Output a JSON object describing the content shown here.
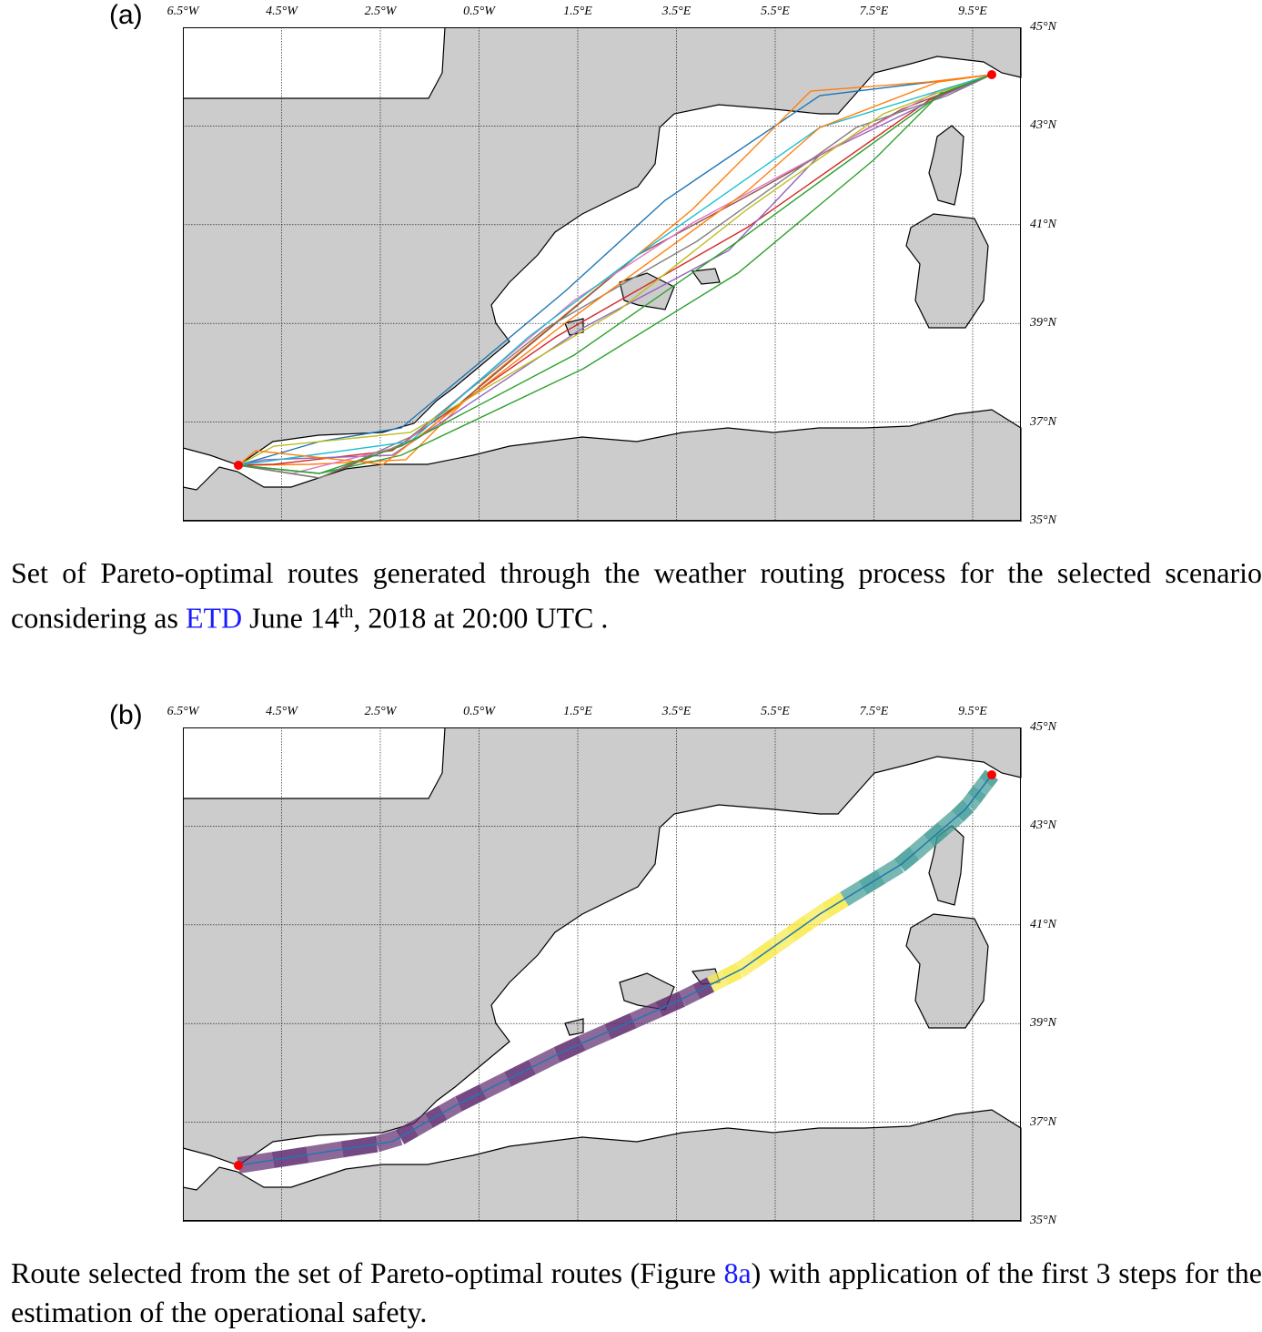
{
  "panels": [
    {
      "label": "(a)"
    },
    {
      "label": "(b)"
    }
  ],
  "lon_ticks": [
    "6.5°W",
    "4.5°W",
    "2.5°W",
    "0.5°W",
    "1.5°E",
    "3.5°E",
    "5.5°E",
    "7.5°E",
    "9.5°E"
  ],
  "lat_ticks": [
    "45°N",
    "43°N",
    "41°N",
    "39°N",
    "37°N",
    "35°N"
  ],
  "caption_a": {
    "pre": "Set of Pareto-optimal routes generated through the weather routing process for the selected scenario considering as ",
    "link": "ETD",
    "mid": " June 14",
    "sup": "th",
    "post": ", 2018 at 20:00 UTC ."
  },
  "caption_b": {
    "pre": "Route selected from the set of Pareto-optimal routes (Figure ",
    "link": "8a",
    "post": ") with application of the first 3 steps for the estimation of the operational safety."
  },
  "colors": {
    "land": "#cccccc",
    "route_purple": "#5e2a6e",
    "route_yellow": "#f7ea48",
    "route_teal": "#3f9b93",
    "route_line": "#1f77b4",
    "port": "#ff0000"
  },
  "route_colors": [
    "#1f77b4",
    "#ff7f0e",
    "#2ca02c",
    "#d62728",
    "#9467bd",
    "#8c564b",
    "#e377c2",
    "#7f7f7f",
    "#bcbd22",
    "#17becf",
    "#ff7f0e",
    "#2ca02c"
  ]
}
